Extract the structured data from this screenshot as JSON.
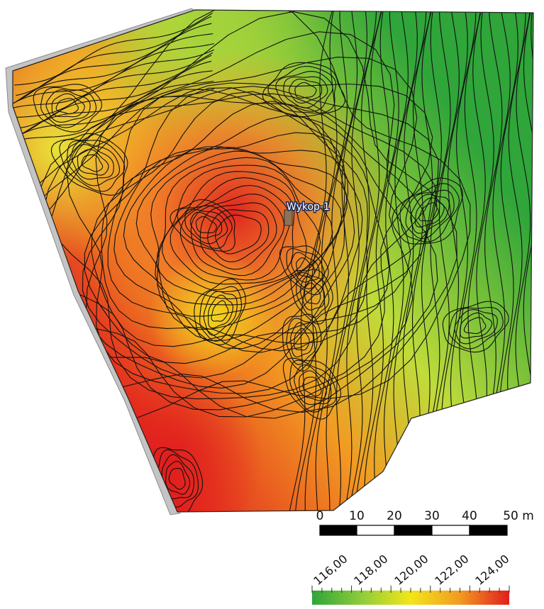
{
  "map": {
    "feature_label": "Wykop-1",
    "colors": {
      "low": "#2fa53a",
      "mid_low": "#8fcc3a",
      "mid": "#f2e61a",
      "mid_high": "#f29a22",
      "high": "#e11e1e",
      "contour": "#111111",
      "road": "#c4c4c4",
      "feature_fill": "#8c7358"
    }
  },
  "scale_bar": {
    "ticks": [
      "0",
      "10",
      "20",
      "30",
      "40",
      "50 m"
    ]
  },
  "elevation_legend": {
    "labels": [
      "116,00",
      "118,00",
      "120,00",
      "122,00",
      "124,00"
    ],
    "gradient": [
      "#2fa53a",
      "#8fcc3a",
      "#f2e61a",
      "#f29a22",
      "#e11e1e"
    ]
  }
}
